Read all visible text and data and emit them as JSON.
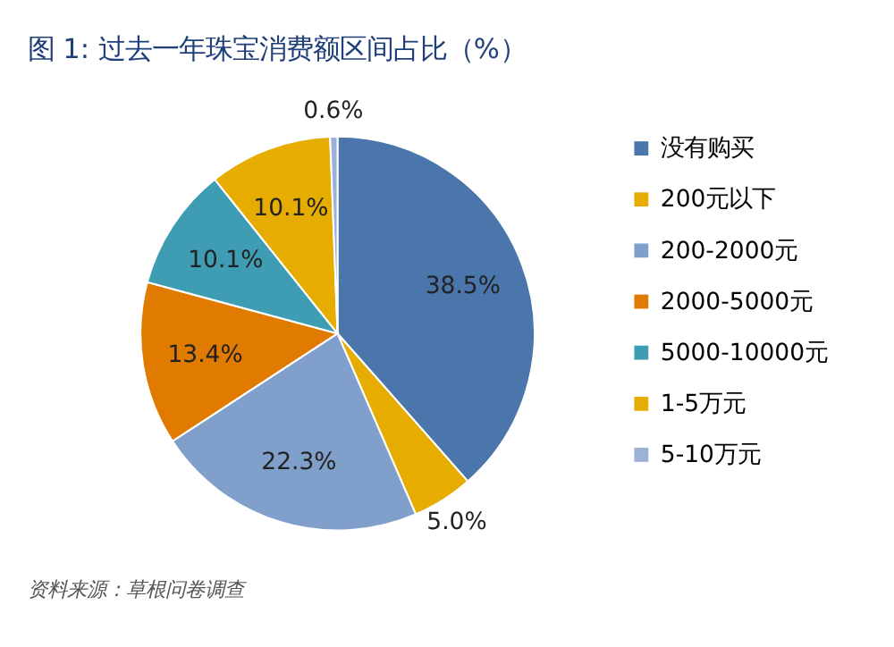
{
  "chart_data": {
    "type": "pie",
    "title": "图 1: 过去一年珠宝消费额区间占比（%）",
    "categories": [
      "没有购买",
      "200元以下",
      "200-2000元",
      "2000-5000元",
      "5000-10000元",
      "1-5万元",
      "5-10万元"
    ],
    "values": [
      38.5,
      5.0,
      22.3,
      13.4,
      10.1,
      10.1,
      0.6
    ],
    "value_labels": [
      "38.5%",
      "5.0%",
      "22.3%",
      "13.4%",
      "10.1%",
      "10.1%",
      "0.6%"
    ],
    "colors": [
      "#4a76ab",
      "#e6ad00",
      "#809fcb",
      "#e07b00",
      "#3f9db3",
      "#e6ad00",
      "#9bb1d8"
    ],
    "legend": "right",
    "annotations": [
      "资料来源：草根问卷调查"
    ]
  }
}
